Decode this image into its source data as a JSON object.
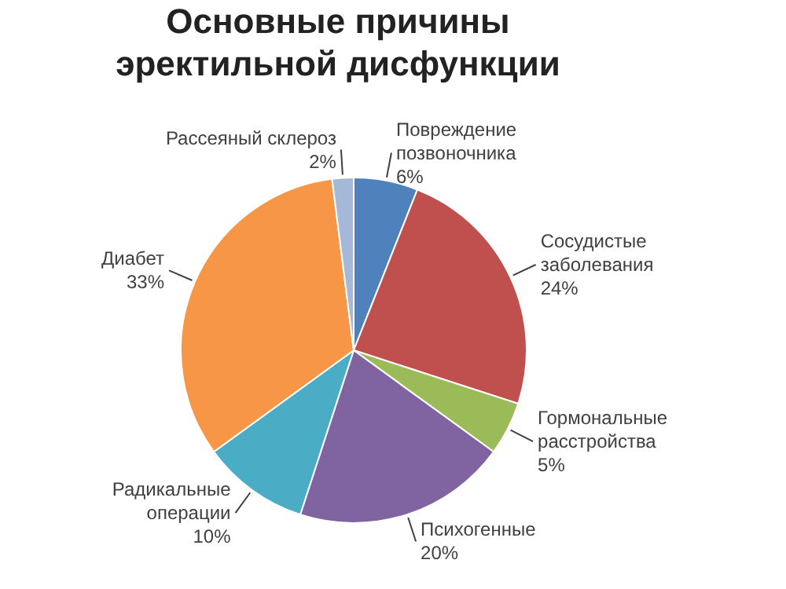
{
  "chart_data": {
    "type": "pie",
    "title": "Основные причины эректильной дисфункции",
    "categories": [
      "Повреждение позвоночника",
      "Сосудистые заболевания",
      "Гормональные расстройства",
      "Психогенные",
      "Радикальные операции",
      "Диабет",
      "Рассеяный склероз"
    ],
    "values": [
      6,
      24,
      5,
      20,
      10,
      33,
      2
    ],
    "value_labels": [
      "6%",
      "24%",
      "5%",
      "20%",
      "10%",
      "33%",
      "2%"
    ],
    "colors": [
      "#4f81bd",
      "#c0504d",
      "#9bbb59",
      "#8064a2",
      "#4bacc6",
      "#f79646",
      "#a5b8d8"
    ],
    "legend": false
  }
}
